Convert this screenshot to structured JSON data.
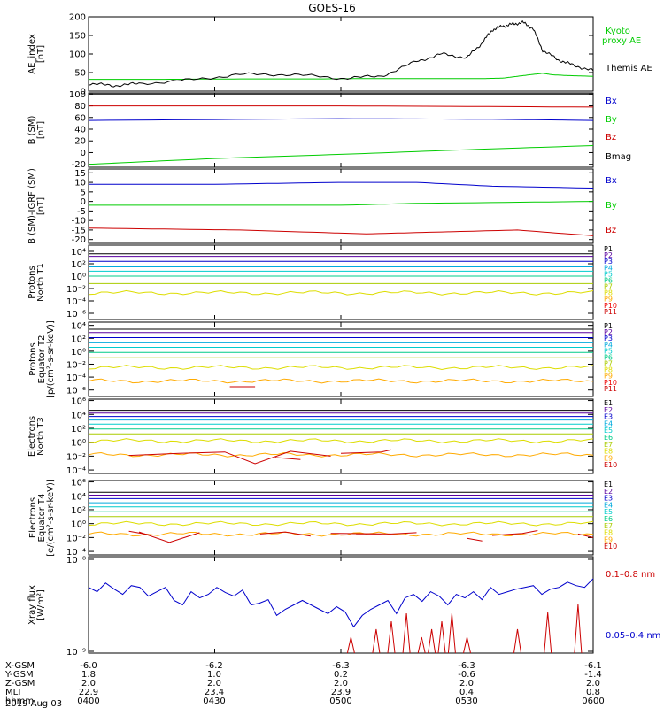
{
  "title": "GOES-16",
  "chart_data": [
    {
      "id": "ae",
      "type": "line",
      "ylabel": [
        "AE_index",
        "[nT]"
      ],
      "yticks": [
        0,
        50,
        100,
        150,
        200
      ],
      "ylim": [
        0,
        200
      ],
      "yscale": "linear",
      "series": [
        {
          "name": "Kyoto\nproxy AE",
          "color": "#00cc00",
          "x": [
            0,
            0.15,
            0.3,
            0.45,
            0.55,
            0.63,
            0.72,
            0.78,
            0.82,
            0.85,
            0.88,
            0.9,
            0.92,
            0.95,
            1
          ],
          "y": [
            32,
            32,
            33,
            33,
            34,
            34,
            34,
            34,
            35,
            40,
            45,
            48,
            44,
            42,
            40
          ]
        },
        {
          "name": "Themis AE",
          "color": "#000000",
          "x": [
            0,
            0.05,
            0.1,
            0.2,
            0.3,
            0.4,
            0.5,
            0.58,
            0.65,
            0.7,
            0.75,
            0.78,
            0.8,
            0.82,
            0.84,
            0.86,
            0.88,
            0.9,
            0.93,
            0.96,
            1
          ],
          "y": [
            20,
            15,
            20,
            30,
            45,
            45,
            35,
            40,
            80,
            100,
            90,
            130,
            165,
            175,
            180,
            185,
            170,
            110,
            85,
            70,
            55
          ]
        }
      ]
    },
    {
      "id": "b_sm",
      "type": "line",
      "ylabel": [
        "B (SM)",
        "[nT]"
      ],
      "yticks": [
        -20,
        0,
        20,
        40,
        60,
        80,
        100
      ],
      "ylim": [
        -25,
        102
      ],
      "yscale": "linear",
      "series": [
        {
          "name": "Bx",
          "color": "#0000cc",
          "x": [
            0,
            0.5,
            0.8,
            1
          ],
          "y": [
            55,
            58,
            57,
            55
          ]
        },
        {
          "name": "By",
          "color": "#00cc00",
          "x": [
            0,
            0.25,
            0.5,
            0.75,
            1
          ],
          "y": [
            -20,
            -10,
            -3,
            5,
            12
          ]
        },
        {
          "name": "Bz",
          "color": "#cc0000",
          "x": [
            0,
            0.5,
            1
          ],
          "y": [
            80,
            80,
            78
          ]
        },
        {
          "name": "Bmag",
          "color": "#000000",
          "x": [
            0,
            0.5,
            1
          ],
          "y": [
            100,
            100,
            100
          ]
        }
      ]
    },
    {
      "id": "b_igrf",
      "type": "line",
      "ylabel": [
        "B (SM)-IGRF (SM)",
        "[nT]"
      ],
      "yticks": [
        -20,
        -15,
        -10,
        -5,
        0,
        5,
        10,
        15
      ],
      "ylim": [
        -22,
        17
      ],
      "yscale": "linear",
      "series": [
        {
          "name": "Bx",
          "color": "#0000cc",
          "x": [
            0,
            0.25,
            0.5,
            0.65,
            0.8,
            1
          ],
          "y": [
            9,
            9,
            10,
            10,
            8,
            7
          ]
        },
        {
          "name": "By",
          "color": "#00cc00",
          "x": [
            0,
            0.5,
            0.65,
            1
          ],
          "y": [
            -2,
            -2,
            -1,
            0
          ]
        },
        {
          "name": "Bz",
          "color": "#cc0000",
          "x": [
            0,
            0.3,
            0.55,
            0.7,
            0.85,
            1
          ],
          "y": [
            -14,
            -15,
            -17,
            -16,
            -15,
            -18
          ]
        }
      ]
    },
    {
      "id": "protons_t1",
      "type": "line",
      "ylabel": [
        "Protons",
        "North T1"
      ],
      "yticklabels": [
        "10⁴",
        "10²",
        "10⁰",
        "10⁻²",
        "10⁻⁴",
        "10⁻⁶"
      ],
      "yscale": "log",
      "ylim_exp": [
        -7,
        5
      ],
      "channels": [
        "P1",
        "P2",
        "P3",
        "P4",
        "P5",
        "P6",
        "P7",
        "P8",
        "P9",
        "P10",
        "P11"
      ],
      "channel_colors": [
        "#000000",
        "#5a00a0",
        "#0000cc",
        "#00aadd",
        "#00cccc",
        "#00cc88",
        "#aacc00",
        "#dddd00",
        "#ffaa00",
        "#ee0000",
        "#cc0000"
      ],
      "levels_exp": [
        3.6,
        3.2,
        2.4,
        1.5,
        0.8,
        0.0,
        -1.2,
        -2.7,
        null,
        null,
        null
      ]
    },
    {
      "id": "protons_t2",
      "type": "line",
      "ylabel": [
        "Protons",
        "Equator T2",
        "[p/(cm²-s-sr-keV)]"
      ],
      "yticklabels": [
        "10⁴",
        "10²",
        "10⁰",
        "10⁻²",
        "10⁻⁴",
        "10⁻⁶"
      ],
      "yscale": "log",
      "ylim_exp": [
        -7,
        4.5
      ],
      "channels": [
        "P1",
        "P2",
        "P3",
        "P4",
        "P5",
        "P6",
        "P7",
        "P8",
        "P9",
        "P10",
        "P11"
      ],
      "channel_colors": [
        "#000000",
        "#5a00a0",
        "#0000cc",
        "#00aadd",
        "#00cccc",
        "#00cc88",
        "#aacc00",
        "#dddd00",
        "#ffaa00",
        "#ee0000",
        "#cc0000"
      ],
      "levels_exp": [
        3.4,
        2.9,
        2.1,
        1.3,
        0.6,
        -0.2,
        -1.0,
        -2.5,
        -4.6,
        null,
        null
      ]
    },
    {
      "id": "electrons_t3",
      "type": "line",
      "ylabel": [
        "Electrons",
        "North T3"
      ],
      "yticklabels": [
        "10⁶",
        "10⁴",
        "10²",
        "10⁰",
        "10⁻²",
        "10⁻⁴"
      ],
      "yscale": "log",
      "ylim_exp": [
        -4.5,
        6.2
      ],
      "channels": [
        "E1",
        "E2",
        "E3",
        "E4",
        "E5",
        "E6",
        "E7",
        "E8",
        "E9",
        "E10"
      ],
      "channel_colors": [
        "#000000",
        "#5a00a0",
        "#0000cc",
        "#00aadd",
        "#00cccc",
        "#00cc88",
        "#aacc00",
        "#dddd00",
        "#ffaa00",
        "#cc0000"
      ],
      "levels_exp": [
        4.6,
        4.2,
        3.7,
        3.2,
        2.6,
        1.9,
        1.2,
        0.2,
        -1.8,
        null
      ]
    },
    {
      "id": "electrons_t4",
      "type": "line",
      "ylabel": [
        "Electrons",
        "Equator T4",
        "[e/(cm²-s-sr-keV)]"
      ],
      "yticklabels": [
        "10⁶",
        "10⁴",
        "10²",
        "10⁰",
        "10⁻²",
        "10⁻⁴"
      ],
      "yscale": "log",
      "ylim_exp": [
        -4.5,
        6.2
      ],
      "channels": [
        "E1",
        "E2",
        "E3",
        "E4",
        "E5",
        "E6",
        "E7",
        "E8",
        "E9",
        "E10"
      ],
      "channel_colors": [
        "#000000",
        "#5a00a0",
        "#0000cc",
        "#00aadd",
        "#00cccc",
        "#00cc88",
        "#aacc00",
        "#dddd00",
        "#ffaa00",
        "#cc0000"
      ],
      "levels_exp": [
        4.5,
        4.1,
        3.6,
        3.0,
        2.4,
        1.7,
        1.0,
        0.0,
        -1.5,
        null
      ]
    },
    {
      "id": "xray",
      "type": "line",
      "ylabel": [
        "Xray flux",
        "[W/m²]"
      ],
      "yticklabels": [
        "10⁻⁸",
        "10⁻⁹"
      ],
      "yscale": "log",
      "ylim_exp": [
        -9,
        -8
      ],
      "series": [
        {
          "name": "0.1–0.8 nm",
          "color": "#cc0000"
        },
        {
          "name": "0.05–0.4 nm",
          "color": "#0000cc"
        }
      ],
      "blue_y": [
        0.3,
        0.35,
        0.25,
        0.32,
        0.38,
        0.28,
        0.3,
        0.4,
        0.35,
        0.3,
        0.45,
        0.5,
        0.35,
        0.42,
        0.38,
        0.3,
        0.36,
        0.4,
        0.33,
        0.5,
        0.48,
        0.44,
        0.62,
        0.55,
        0.5,
        0.45,
        0.5,
        0.55,
        0.6,
        0.52,
        0.58,
        0.75,
        0.62,
        0.55,
        0.5,
        0.45,
        0.6,
        0.42,
        0.38,
        0.46,
        0.35,
        0.4,
        0.5,
        0.38,
        0.42,
        0.35,
        0.44,
        0.3,
        0.38,
        0.35,
        0.32,
        0.3,
        0.28,
        0.38,
        0.32,
        0.3,
        0.24,
        0.28,
        0.3,
        0.2
      ],
      "red_spikes_x": [
        0.52,
        0.57,
        0.6,
        0.63,
        0.66,
        0.68,
        0.7,
        0.72,
        0.75,
        0.85,
        0.91,
        0.97
      ]
    }
  ],
  "legends": {
    "ae": [
      "Kyoto",
      "proxy AE",
      "Themis AE"
    ],
    "b_sm": [
      "Bx",
      "By",
      "Bz",
      "Bmag"
    ],
    "b_igrf": [
      "Bx",
      "By",
      "Bz"
    ],
    "xray": [
      "0.1–0.8 nm",
      "0.05–0.4 nm"
    ]
  },
  "ephemeris": {
    "rows": [
      {
        "label": "X-GSM",
        "values": [
          "-6.0",
          "-6.2",
          "-6.3",
          "-6.3",
          "-6.1"
        ]
      },
      {
        "label": "Y-GSM",
        "values": [
          "1.8",
          "1.0",
          "0.2",
          "-0.6",
          "-1.4"
        ]
      },
      {
        "label": "Z-GSM",
        "values": [
          "2.0",
          "2.0",
          "2.0",
          "2.0",
          "2.0"
        ]
      },
      {
        "label": "MLT",
        "values": [
          "22.9",
          "23.4",
          "23.9",
          "0.4",
          "0.8"
        ]
      },
      {
        "label": "hhmm",
        "values": [
          "0400",
          "0430",
          "0500",
          "0530",
          "0600"
        ]
      }
    ],
    "date": "2019 Aug 03"
  },
  "colors": {
    "axes": "#000000",
    "background": "#ffffff"
  }
}
